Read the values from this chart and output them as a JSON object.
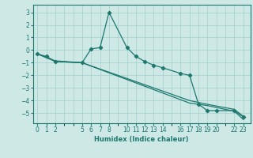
{
  "xlabel": "Humidex (Indice chaleur)",
  "background_color": "#cde8e5",
  "grid_color": "#a8d4d0",
  "line_color": "#1e7870",
  "xtick_positions": [
    0,
    1,
    2,
    5,
    6,
    7,
    8,
    10,
    11,
    12,
    13,
    14,
    16,
    17,
    18,
    19,
    20,
    22,
    23
  ],
  "xtick_labels": [
    "0",
    "1",
    "2",
    "5",
    "6",
    "7",
    "8",
    "10",
    "11",
    "12",
    "13",
    "14",
    "16",
    "17",
    "18",
    "19",
    "20",
    "22",
    "23"
  ],
  "yticks": [
    -5,
    -4,
    -3,
    -2,
    -1,
    0,
    1,
    2,
    3
  ],
  "xlim": [
    -0.5,
    23.8
  ],
  "ylim": [
    -5.8,
    3.6
  ],
  "line1_x": [
    0,
    1,
    2,
    5,
    6,
    7,
    8,
    10,
    11,
    12,
    13,
    14,
    16,
    17,
    18,
    19,
    20,
    22,
    23
  ],
  "line1_y": [
    -0.3,
    -0.5,
    -0.9,
    -1.0,
    0.1,
    0.2,
    3.0,
    0.2,
    -0.5,
    -0.9,
    -1.2,
    -1.4,
    -1.85,
    -2.0,
    -4.3,
    -4.8,
    -4.8,
    -4.8,
    -5.3
  ],
  "line2_x": [
    0,
    2,
    5,
    17,
    19,
    22,
    23
  ],
  "line2_y": [
    -0.3,
    -0.9,
    -1.0,
    -4.2,
    -4.4,
    -4.85,
    -5.5
  ],
  "line3_x": [
    0,
    2,
    5,
    17,
    19,
    22,
    23
  ],
  "line3_y": [
    -0.3,
    -0.85,
    -1.0,
    -4.0,
    -4.3,
    -4.7,
    -5.25
  ]
}
